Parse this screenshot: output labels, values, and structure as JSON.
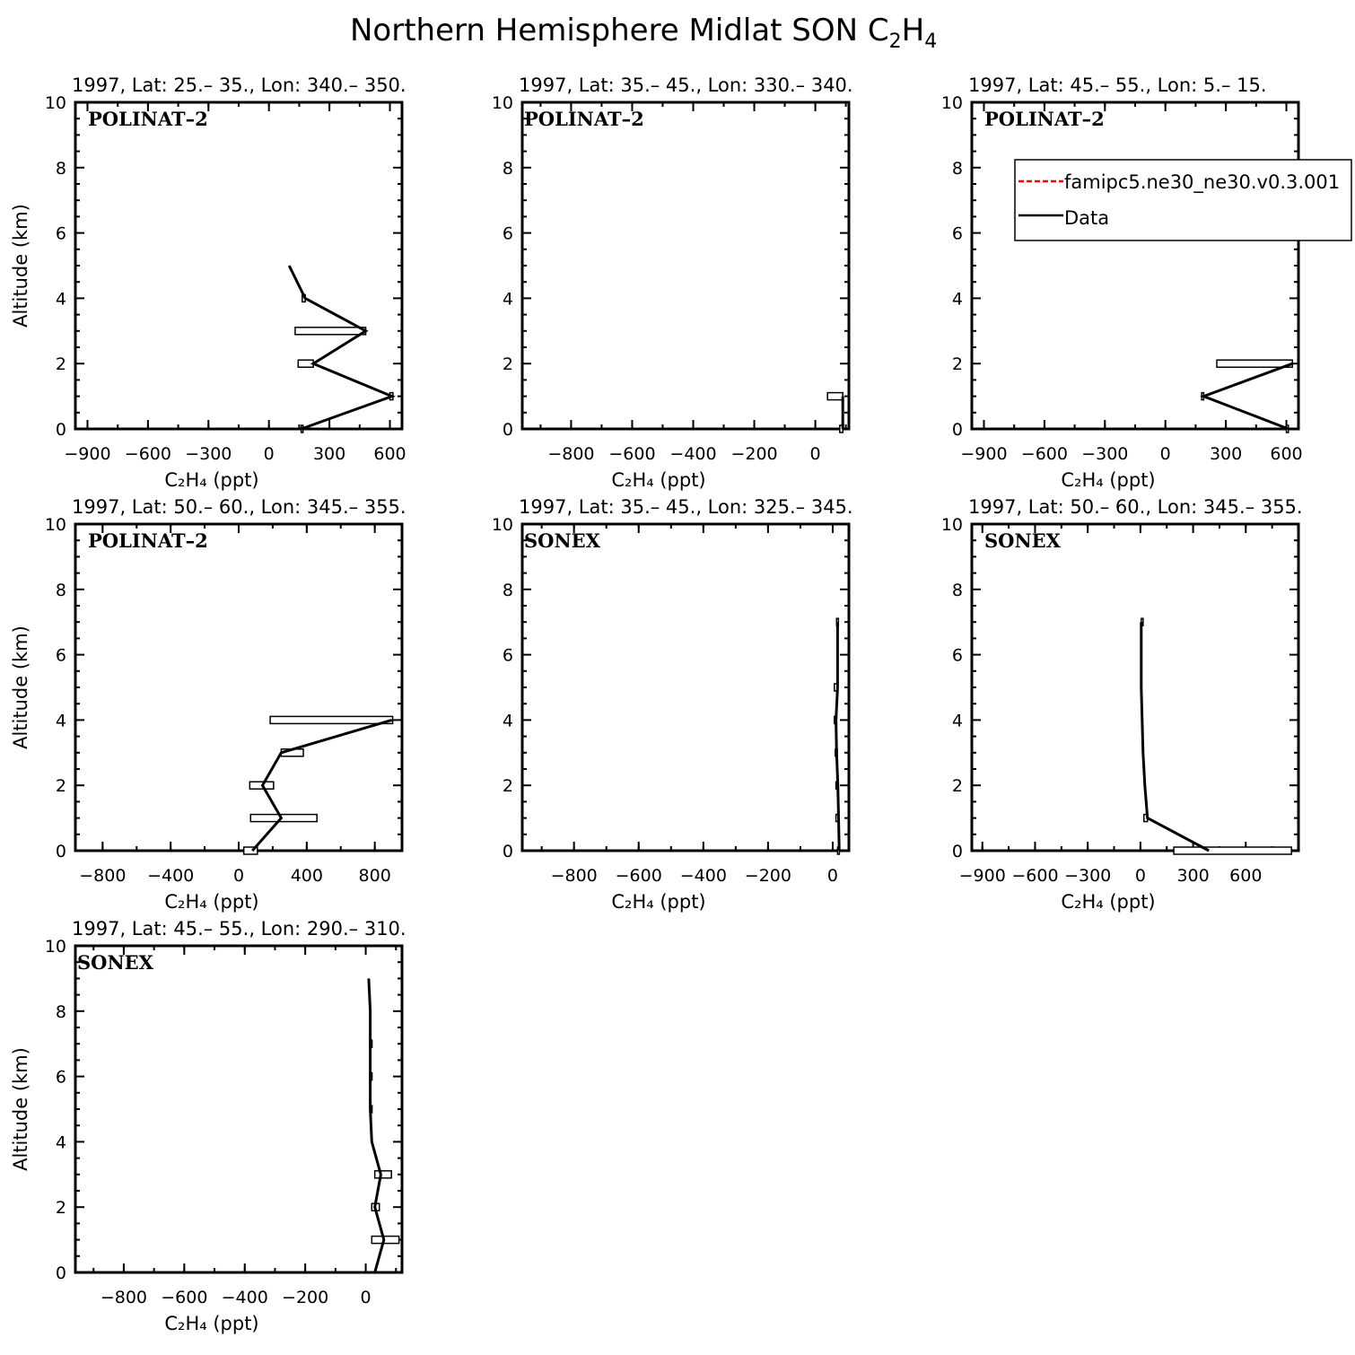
{
  "figure": {
    "title": "Northern Hemisphere Midlat SON C",
    "title_species_sub1": "2",
    "title_species_h": "H",
    "title_species_sub2": "4"
  },
  "legend": {
    "entries": [
      {
        "label": "famipc5.ne30_ne30.v0.3.001",
        "color": "#ff0000",
        "style": "dashed"
      },
      {
        "label": "Data",
        "color": "#000000",
        "style": "solid"
      }
    ]
  },
  "colors": {
    "data_line": "#000000",
    "model_line": "#ff0000",
    "axis": "#000000"
  },
  "chart_data": [
    {
      "type": "line",
      "title": "1997, Lat: 25.– 35., Lon: 340.– 350.",
      "campaign": "POLINAT–2",
      "xlabel": "C₂H₄ (ppt)",
      "ylabel": "Altitude (km)",
      "xlim": [
        -960,
        660
      ],
      "ylim": [
        0,
        10
      ],
      "xticks": [
        -900,
        -600,
        -300,
        0,
        300,
        600
      ],
      "xtick_labels": [
        "−900",
        "−600",
        "−300",
        "0",
        "300",
        "600"
      ],
      "yticks": [
        0,
        2,
        4,
        6,
        8,
        10
      ],
      "series": [
        {
          "name": "Data",
          "x": [
            160,
            610,
            220,
            480,
            180,
            100
          ],
          "y": [
            0,
            1,
            2,
            3,
            4,
            5
          ]
        }
      ],
      "ranges": [
        [
          160,
          160,
          0
        ],
        [
          600,
          615,
          1
        ],
        [
          145,
          220,
          2
        ],
        [
          130,
          480,
          3
        ],
        [
          165,
          180,
          4
        ]
      ]
    },
    {
      "type": "line",
      "title": "1997, Lat: 35.– 45., Lon: 330.– 340.",
      "campaign": "POLINAT–2",
      "xlabel": "C₂H₄ (ppt)",
      "ylabel": "Altitude (km)",
      "xlim": [
        -960,
        110
      ],
      "ylim": [
        0,
        10
      ],
      "xticks": [
        -800,
        -600,
        -400,
        -200,
        0
      ],
      "xtick_labels": [
        "−800",
        "−600",
        "−400",
        "−200",
        "0"
      ],
      "yticks": [
        0,
        2,
        4,
        6,
        8,
        10
      ],
      "series": [
        {
          "name": "Data",
          "x": [
            90,
            90
          ],
          "y": [
            0,
            1
          ]
        }
      ],
      "ranges": [
        [
          80,
          90,
          0
        ],
        [
          40,
          90,
          1
        ]
      ]
    },
    {
      "type": "line",
      "title": "1997, Lat: 45.– 55., Lon: 5.– 15.",
      "campaign": "POLINAT–2",
      "xlabel": "C₂H₄ (ppt)",
      "ylabel": "Altitude (km)",
      "xlim": [
        -960,
        660
      ],
      "ylim": [
        0,
        10
      ],
      "xticks": [
        -900,
        -600,
        -300,
        0,
        300,
        600
      ],
      "xtick_labels": [
        "−900",
        "−600",
        "−300",
        "0",
        "300",
        "600"
      ],
      "yticks": [
        0,
        2,
        4,
        6,
        8,
        10
      ],
      "series": [
        {
          "name": "Data",
          "x": [
            610,
            190,
            630
          ],
          "y": [
            0,
            1,
            2
          ]
        }
      ],
      "ranges": [
        [
          600,
          610,
          0
        ],
        [
          180,
          190,
          1
        ],
        [
          255,
          630,
          2
        ]
      ]
    },
    {
      "type": "line",
      "title": "1997, Lat: 50.– 60., Lon: 345.– 355.",
      "campaign": "POLINAT–2",
      "xlabel": "C₂H₄ (ppt)",
      "ylabel": "Altitude (km)",
      "xlim": [
        -960,
        960
      ],
      "ylim": [
        0,
        10
      ],
      "xticks": [
        -800,
        -400,
        0,
        400,
        800
      ],
      "xtick_labels": [
        "−800",
        "−400",
        "0",
        "400",
        "800"
      ],
      "yticks": [
        0,
        2,
        4,
        6,
        8,
        10
      ],
      "series": [
        {
          "name": "Data",
          "x": [
            80,
            250,
            140,
            250,
            900
          ],
          "y": [
            0,
            1,
            2,
            3,
            4
          ]
        }
      ],
      "ranges": [
        [
          30,
          110,
          0
        ],
        [
          70,
          460,
          1
        ],
        [
          65,
          205,
          2
        ],
        [
          250,
          380,
          3
        ],
        [
          185,
          905,
          4
        ]
      ]
    },
    {
      "type": "line",
      "title": "1997, Lat: 35.– 45., Lon: 325.– 345.",
      "campaign": "SONEX",
      "xlabel": "C₂H₄ (ppt)",
      "ylabel": "Altitude (km)",
      "xlim": [
        -960,
        50
      ],
      "ylim": [
        0,
        10
      ],
      "xticks": [
        -800,
        -600,
        -400,
        -200,
        0
      ],
      "xtick_labels": [
        "−800",
        "−600",
        "−400",
        "−200",
        "0"
      ],
      "yticks": [
        0,
        2,
        4,
        6,
        8,
        10
      ],
      "series": [
        {
          "name": "Data",
          "x": [
            20,
            18,
            16,
            12,
            10,
            15,
            15
          ],
          "y": [
            0,
            1,
            2,
            3,
            4,
            5,
            7
          ]
        }
      ],
      "ranges": [
        [
          15,
          20,
          0
        ],
        [
          10,
          18,
          1
        ],
        [
          10,
          16,
          2
        ],
        [
          8,
          14,
          3
        ],
        [
          5,
          12,
          4
        ],
        [
          5,
          15,
          5
        ],
        [
          12,
          15,
          7
        ]
      ]
    },
    {
      "type": "line",
      "title": "1997, Lat: 50.– 60., Lon: 345.– 355.",
      "campaign": "SONEX",
      "xlabel": "C₂H₄ (ppt)",
      "ylabel": "Altitude (km)",
      "xlim": [
        -960,
        900
      ],
      "ylim": [
        0,
        10
      ],
      "xticks": [
        -900,
        -600,
        -300,
        0,
        300,
        600
      ],
      "xtick_labels": [
        "−900",
        "−600",
        "−300",
        "0",
        "300",
        "600"
      ],
      "yticks": [
        0,
        2,
        4,
        6,
        8,
        10
      ],
      "series": [
        {
          "name": "Data",
          "x": [
            390,
            40,
            25,
            15,
            10,
            5,
            5
          ],
          "y": [
            0,
            1,
            2,
            3,
            4,
            5,
            7
          ]
        }
      ],
      "ranges": [
        [
          190,
          860,
          0
        ],
        [
          20,
          40,
          1
        ],
        [
          5,
          10,
          7
        ]
      ]
    },
    {
      "type": "line",
      "title": "1997, Lat: 45.– 55., Lon: 290.– 310.",
      "campaign": "SONEX",
      "xlabel": "C₂H₄ (ppt)",
      "ylabel": "Altitude (km)",
      "xlim": [
        -960,
        120
      ],
      "ylim": [
        0,
        10
      ],
      "xticks": [
        -800,
        -600,
        -400,
        -200,
        0
      ],
      "xtick_labels": [
        "−800",
        "−600",
        "−400",
        "−200",
        "0"
      ],
      "yticks": [
        0,
        2,
        4,
        6,
        8,
        10
      ],
      "series": [
        {
          "name": "Data",
          "x": [
            30,
            60,
            30,
            50,
            20,
            15,
            15,
            15,
            15,
            10
          ],
          "y": [
            0,
            1,
            2,
            3,
            4,
            5,
            6,
            7,
            8,
            9
          ]
        }
      ],
      "ranges": [
        [
          20,
          110,
          1
        ],
        [
          20,
          45,
          2
        ],
        [
          30,
          85,
          3
        ],
        [
          15,
          18,
          5
        ],
        [
          15,
          18,
          6
        ],
        [
          15,
          18,
          7
        ]
      ]
    }
  ]
}
